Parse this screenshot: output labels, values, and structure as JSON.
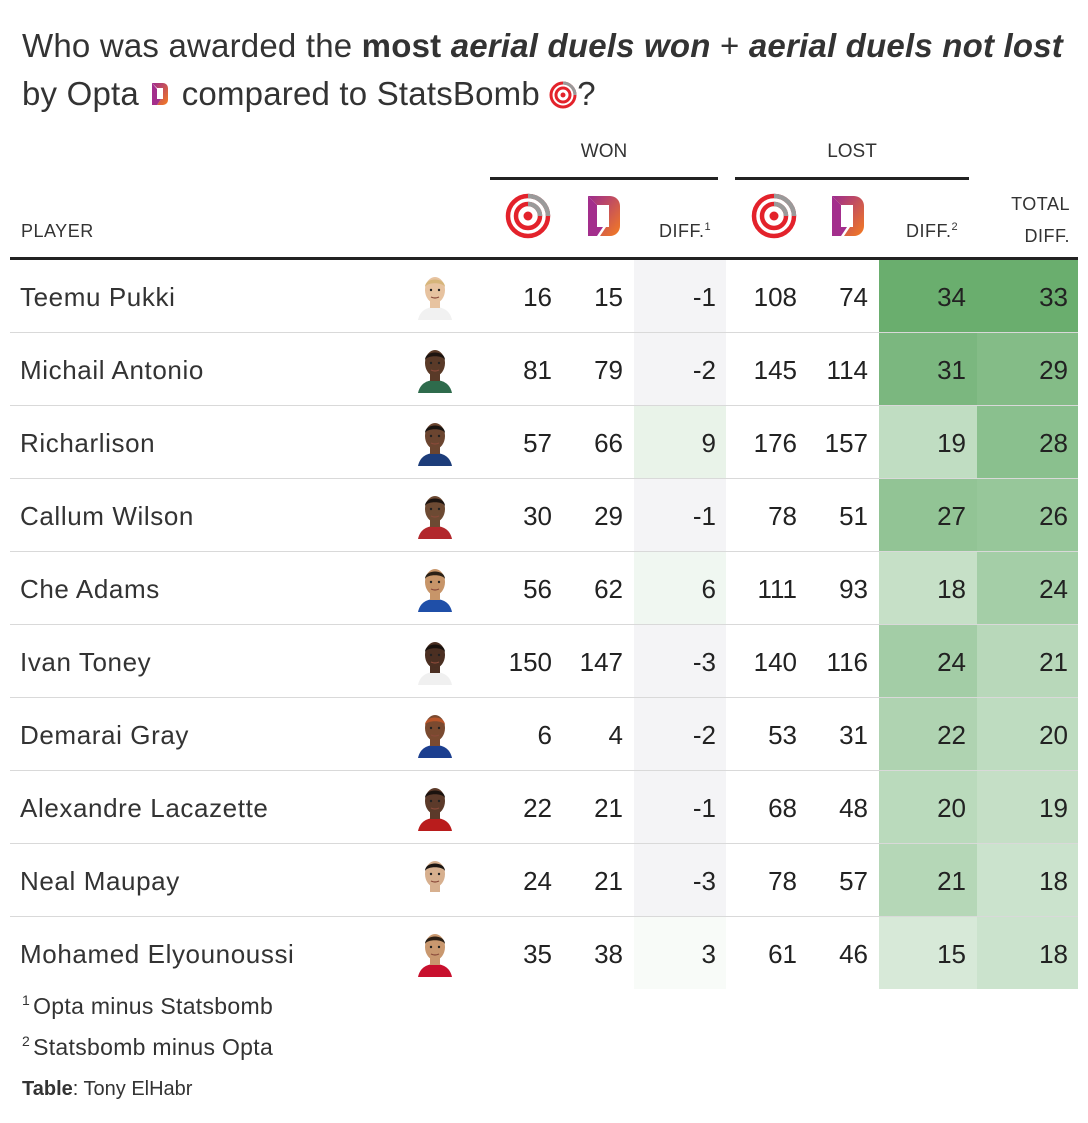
{
  "title": {
    "part1": "Who was awarded the ",
    "bold1": "most",
    "bolditalic1": " aerial duels won",
    "plus": " + ",
    "bolditalic2": "aerial duels not lost",
    "part2": " by Opta ",
    "part3": " compared to StatsBomb ",
    "end": "?"
  },
  "header": {
    "won": "WON",
    "lost": "LOST",
    "player": "PLAYER",
    "diff": "DIFF.",
    "diff1_sup": "1",
    "diff2_sup": "2",
    "total_line1": "TOTAL",
    "total_line2": "DIFF."
  },
  "rows": [
    {
      "player": "Teemu Pukki",
      "won_sb": "16",
      "won_opta": "15",
      "won_diff": "-1",
      "lost_sb": "108",
      "lost_opta": "74",
      "lost_diff": "34",
      "total_diff": "33"
    },
    {
      "player": "Michail Antonio",
      "won_sb": "81",
      "won_opta": "79",
      "won_diff": "-2",
      "lost_sb": "145",
      "lost_opta": "114",
      "lost_diff": "31",
      "total_diff": "29"
    },
    {
      "player": "Richarlison",
      "won_sb": "57",
      "won_opta": "66",
      "won_diff": "9",
      "lost_sb": "176",
      "lost_opta": "157",
      "lost_diff": "19",
      "total_diff": "28"
    },
    {
      "player": "Callum Wilson",
      "won_sb": "30",
      "won_opta": "29",
      "won_diff": "-1",
      "lost_sb": "78",
      "lost_opta": "51",
      "lost_diff": "27",
      "total_diff": "26"
    },
    {
      "player": "Che Adams",
      "won_sb": "56",
      "won_opta": "62",
      "won_diff": "6",
      "lost_sb": "111",
      "lost_opta": "93",
      "lost_diff": "18",
      "total_diff": "24"
    },
    {
      "player": "Ivan Toney",
      "won_sb": "150",
      "won_opta": "147",
      "won_diff": "-3",
      "lost_sb": "140",
      "lost_opta": "116",
      "lost_diff": "24",
      "total_diff": "21"
    },
    {
      "player": "Demarai Gray",
      "won_sb": "6",
      "won_opta": "4",
      "won_diff": "-2",
      "lost_sb": "53",
      "lost_opta": "31",
      "lost_diff": "22",
      "total_diff": "20"
    },
    {
      "player": "Alexandre Lacazette",
      "won_sb": "22",
      "won_opta": "21",
      "won_diff": "-1",
      "lost_sb": "68",
      "lost_opta": "48",
      "lost_diff": "20",
      "total_diff": "19"
    },
    {
      "player": "Neal Maupay",
      "won_sb": "24",
      "won_opta": "21",
      "won_diff": "-3",
      "lost_sb": "78",
      "lost_opta": "57",
      "lost_diff": "21",
      "total_diff": "18"
    },
    {
      "player": "Mohamed Elyounoussi",
      "won_sb": "35",
      "won_opta": "38",
      "won_diff": "3",
      "lost_sb": "61",
      "lost_opta": "46",
      "lost_diff": "15",
      "total_diff": "18"
    }
  ],
  "footnotes": {
    "n1_sup": "1",
    "n1": "Opta minus Statsbomb",
    "n2_sup": "2",
    "n2": "Statsbomb minus Opta",
    "credit_label": "Table",
    "credit_value": ": Tony ElHabr"
  },
  "icons": {
    "statsbomb": "statsbomb-logo-icon",
    "opta": "opta-logo-icon",
    "player_photo": "player-avatar-icon"
  },
  "colors": {
    "green_dark": "#6aae6e",
    "green_light": "#e8f4e6",
    "neutral_light": "#f4f4f6",
    "opta_purple": "#9b2b8f",
    "opta_orange": "#f57c20",
    "statsbomb_red": "#e3222b"
  }
}
